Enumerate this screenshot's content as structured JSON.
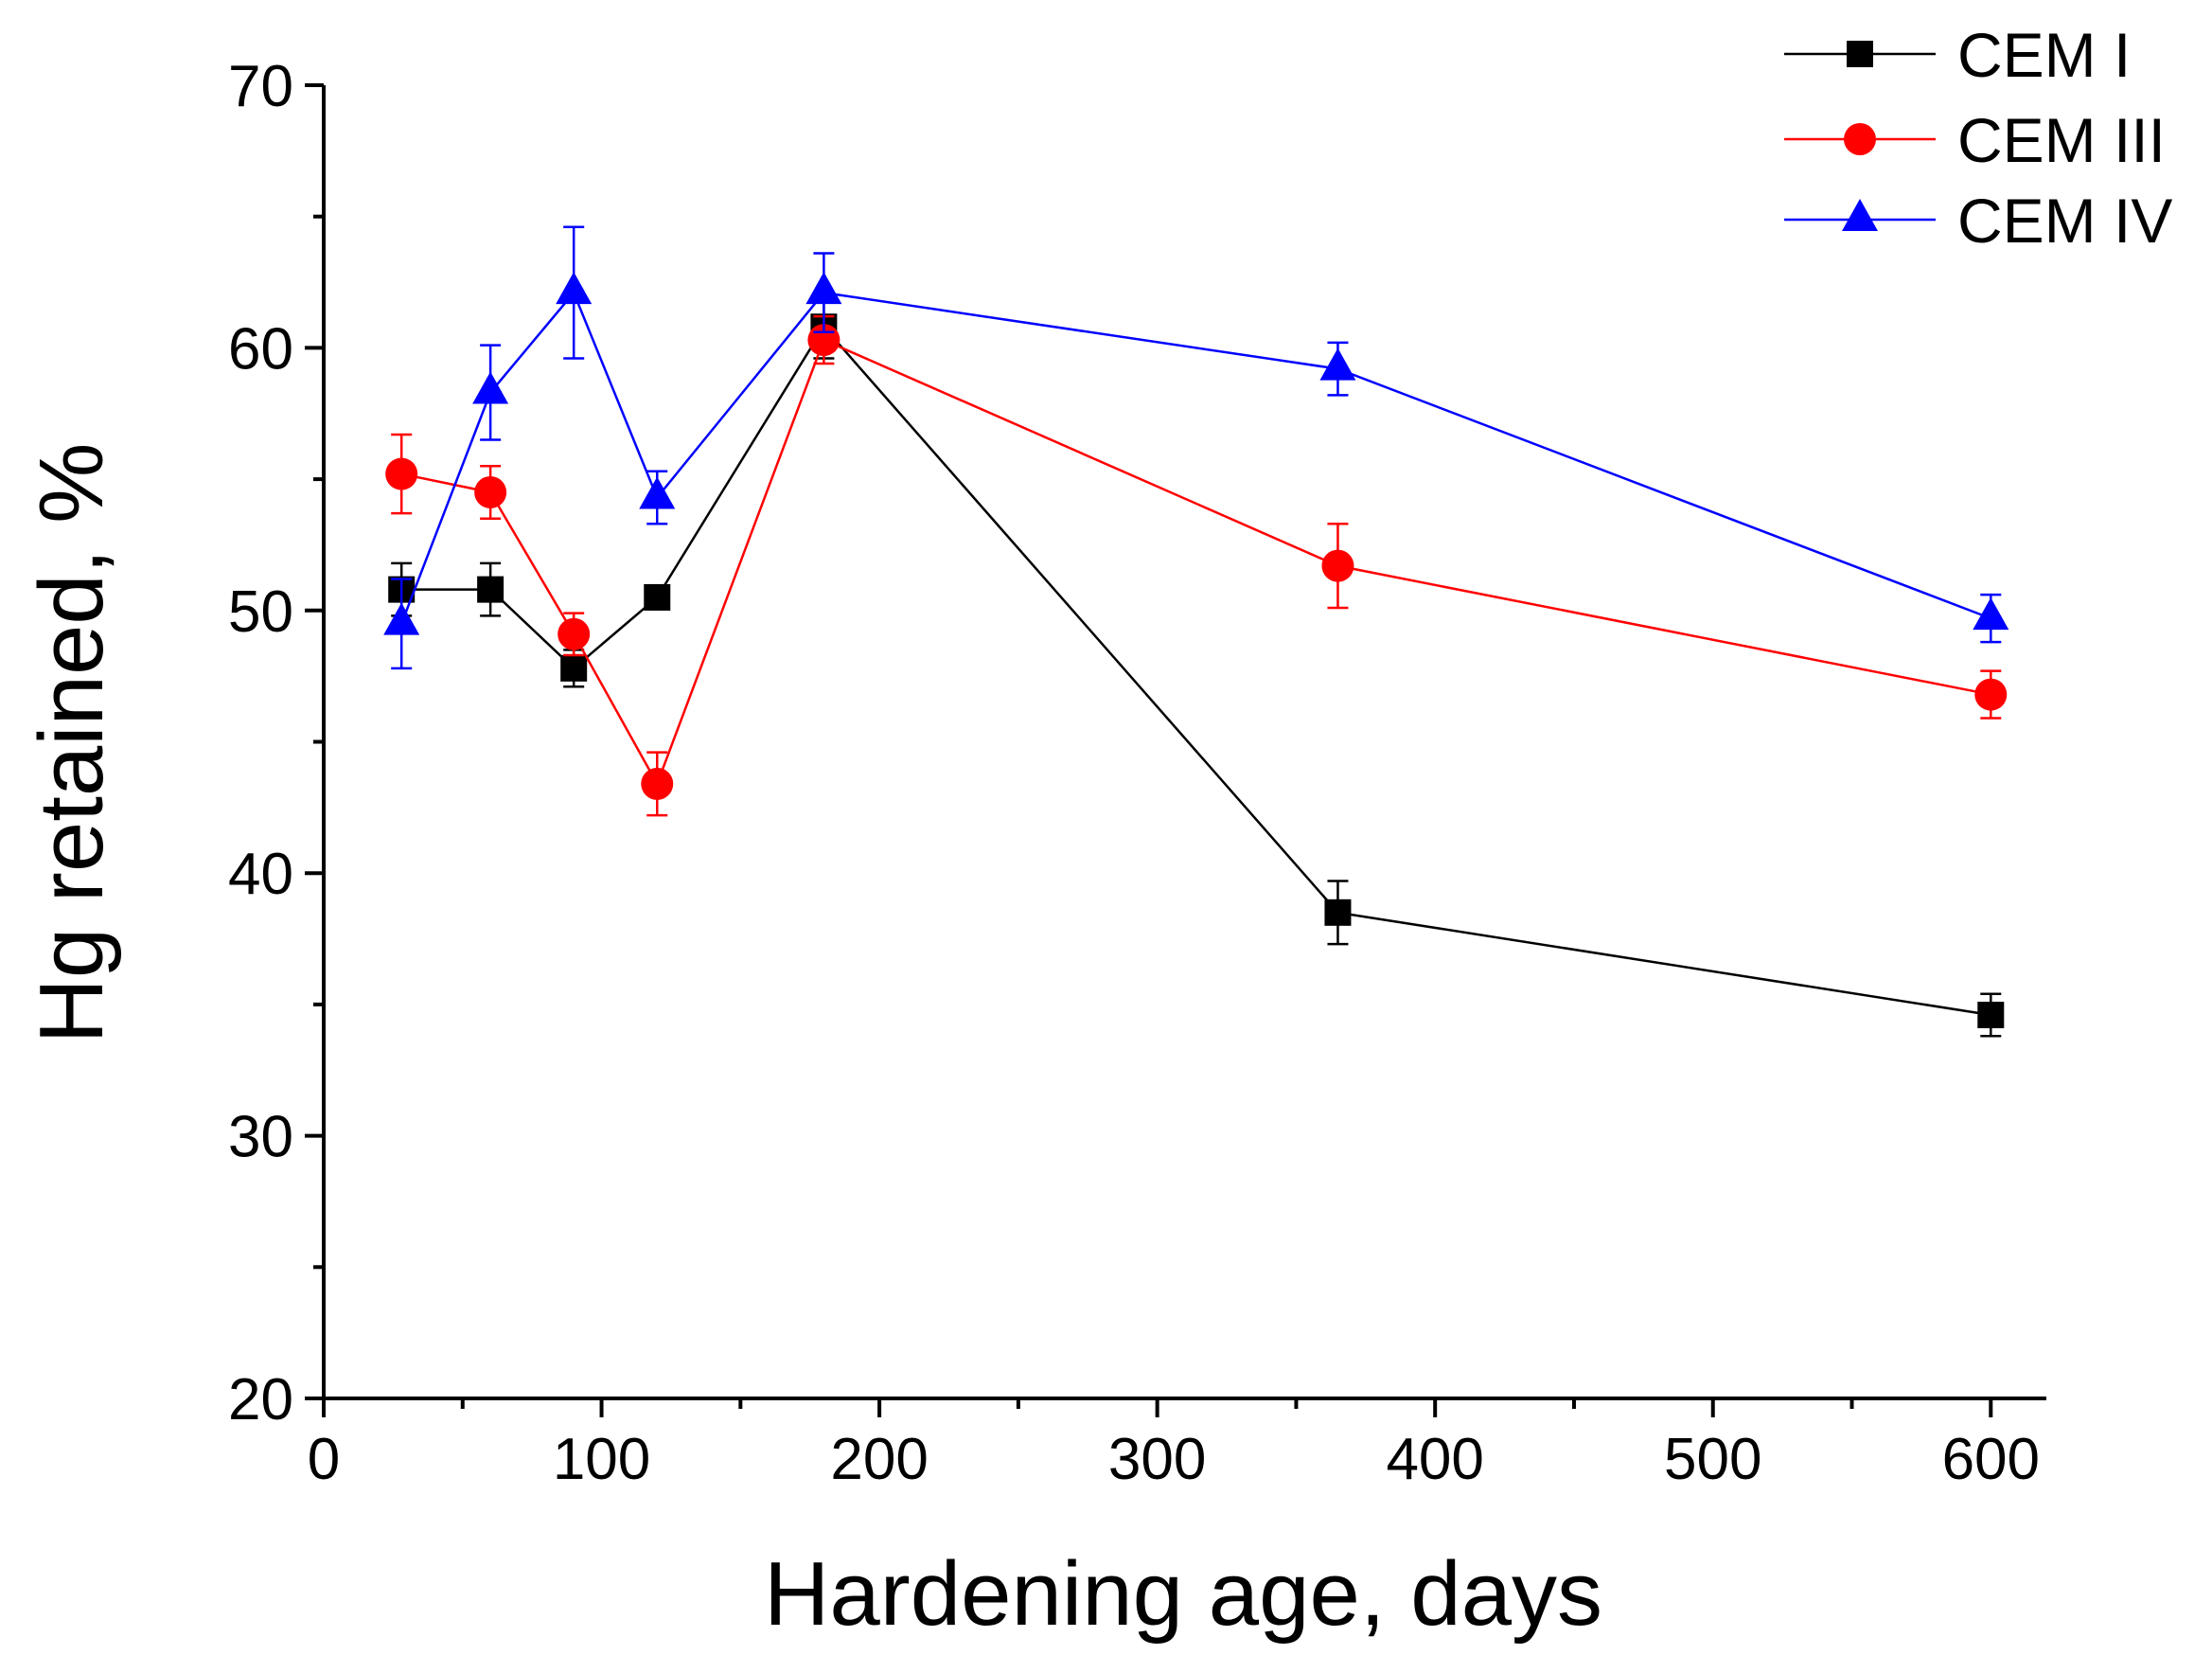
{
  "chart_data": {
    "type": "line",
    "title": "",
    "xlabel": "Hardening age, days",
    "ylabel": "Hg retained, %",
    "xlim": [
      0,
      620
    ],
    "ylim": [
      20,
      70
    ],
    "x_major_ticks": [
      0,
      100,
      200,
      300,
      400,
      500,
      600
    ],
    "x_minor_ticks": [
      50,
      150,
      250,
      350,
      450,
      550
    ],
    "y_major_ticks": [
      20,
      30,
      40,
      50,
      60,
      70
    ],
    "y_minor_ticks": [
      25,
      35,
      45,
      55,
      65
    ],
    "grid": false,
    "legend_position": "top-right",
    "series": [
      {
        "name": "CEM I",
        "color": "#000000",
        "marker": "square",
        "x": [
          28,
          60,
          90,
          120,
          180,
          365,
          600
        ],
        "y": [
          50.8,
          50.8,
          47.8,
          50.5,
          60.8,
          38.5,
          34.6
        ],
        "err": [
          1.0,
          1.0,
          0.7,
          0.4,
          1.2,
          1.2,
          0.8
        ]
      },
      {
        "name": "CEM III",
        "color": "#ff0000",
        "marker": "circle",
        "x": [
          28,
          60,
          90,
          120,
          180,
          365,
          600
        ],
        "y": [
          55.2,
          54.5,
          49.1,
          43.4,
          60.3,
          51.7,
          46.8
        ],
        "err": [
          1.5,
          1.0,
          0.8,
          1.2,
          0.9,
          1.6,
          0.9
        ]
      },
      {
        "name": "CEM IV",
        "color": "#0000ff",
        "marker": "triangle",
        "x": [
          28,
          60,
          90,
          120,
          180,
          365,
          600
        ],
        "y": [
          49.5,
          58.3,
          62.1,
          54.3,
          62.1,
          59.2,
          49.7
        ],
        "err": [
          1.7,
          1.8,
          2.5,
          1.0,
          1.5,
          1.0,
          0.9
        ]
      }
    ]
  }
}
